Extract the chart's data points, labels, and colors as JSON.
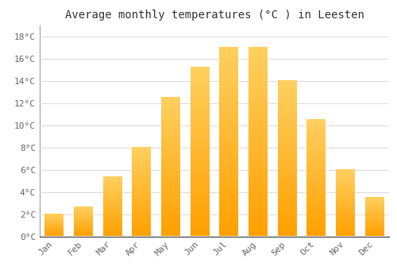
{
  "title": "Average monthly temperatures (°C ) in Leesten",
  "months": [
    "Jan",
    "Feb",
    "Mar",
    "Apr",
    "May",
    "Jun",
    "Jul",
    "Aug",
    "Sep",
    "Oct",
    "Nov",
    "Dec"
  ],
  "values": [
    2.0,
    2.6,
    5.3,
    8.0,
    12.5,
    15.2,
    17.0,
    17.0,
    14.0,
    10.5,
    6.0,
    3.5
  ],
  "bar_color_light": "#FFD060",
  "bar_color_dark": "#FFA000",
  "ylim": [
    0,
    19
  ],
  "yticks": [
    0,
    2,
    4,
    6,
    8,
    10,
    12,
    14,
    16,
    18
  ],
  "ytick_labels": [
    "0°C",
    "2°C",
    "4°C",
    "6°C",
    "8°C",
    "10°C",
    "12°C",
    "14°C",
    "16°C",
    "18°C"
  ],
  "background_color": "#ffffff",
  "grid_color": "#dddddd",
  "title_fontsize": 10,
  "tick_fontsize": 8,
  "bar_width": 0.65,
  "bar_gap_color": "#ffffff"
}
